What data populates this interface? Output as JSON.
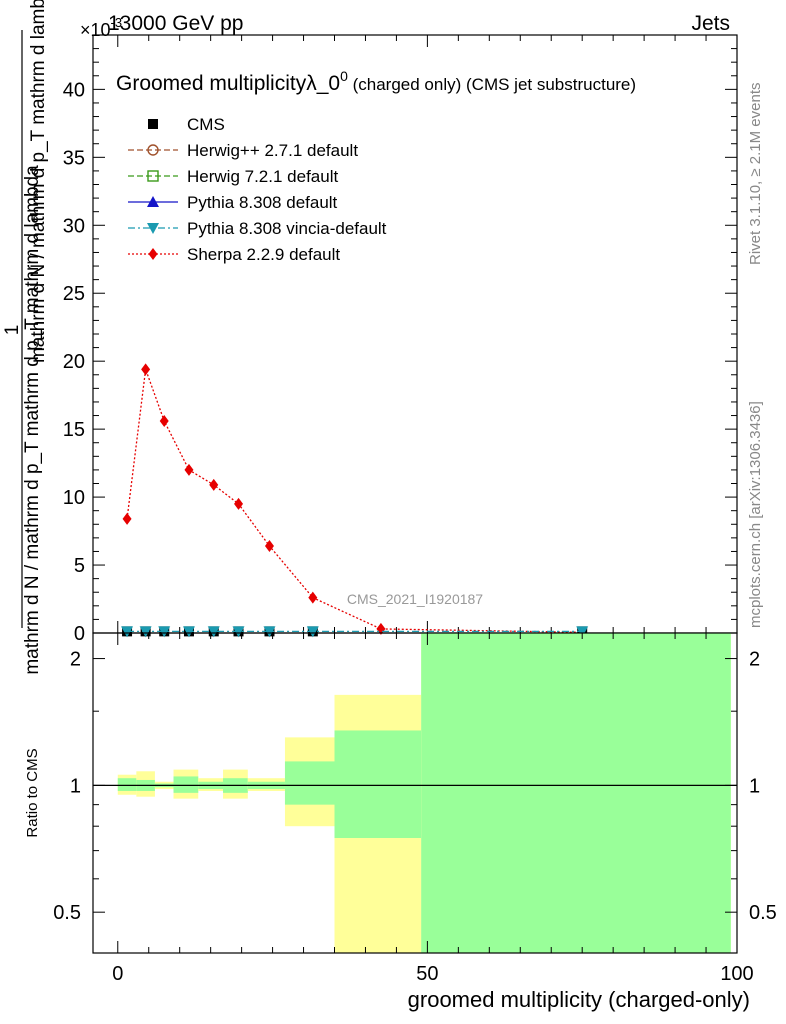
{
  "header": {
    "left": "13000 GeV pp",
    "right": "Jets",
    "exponent": "×10",
    "exponent_power": "-3"
  },
  "side_labels": {
    "rivet": "Rivet 3.1.10, ≥ 2.1M events",
    "mcplots": "mcplots.cern.ch [arXiv:1306.3436]"
  },
  "watermark": "CMS_2021_I1920187",
  "chart_data": [
    {
      "type": "line",
      "panel": "main",
      "title": "Groomed multiplicityλ_0",
      "title_sup": "0",
      "title_suffix": " (charged only) (CMS jet substructure)",
      "ylabel_fraction_top": "1",
      "ylabel_top": "mathrm d N / mathrm d p_T mathrm d lambda",
      "ylabel_num": "mathrm d²N",
      "ylabel_den": "mathrm d N / mathrm d p_T mathrm d p_T mathrm d lambda",
      "ylim": [
        0,
        44
      ],
      "y_ticks": [
        0,
        5,
        10,
        15,
        20,
        25,
        30,
        35,
        40
      ],
      "y_tick_labels": [
        "0",
        "5",
        "10",
        "15",
        "20",
        "25",
        "30",
        "35",
        "40"
      ],
      "xlim": [
        -4,
        100
      ],
      "legend_position": "top-left",
      "legend": [
        {
          "name": "CMS",
          "color": "#000000",
          "marker": "square",
          "line": "none"
        },
        {
          "name": "Herwig++ 2.7.1 default",
          "color": "#a0522d",
          "marker": "circle-open",
          "line": "dashed"
        },
        {
          "name": "Herwig 7.2.1 default",
          "color": "#3a9a1a",
          "marker": "square-open",
          "line": "dashed"
        },
        {
          "name": "Pythia 8.308 default",
          "color": "#1414c8",
          "marker": "triangle-up",
          "line": "solid"
        },
        {
          "name": "Pythia 8.308 vincia-default",
          "color": "#1a9ab0",
          "marker": "triangle-down",
          "line": "dashdot"
        },
        {
          "name": "Sherpa 2.2.9 default",
          "color": "#e60000",
          "marker": "diamond",
          "line": "dotted"
        }
      ],
      "series": [
        {
          "name": "Sherpa 2.2.9 default",
          "color": "#e60000",
          "x": [
            1.5,
            4.5,
            7.5,
            11.5,
            15.5,
            19.5,
            24.5,
            31.5,
            42.5,
            75
          ],
          "y": [
            8.4,
            19.4,
            15.6,
            12.0,
            10.9,
            9.5,
            6.4,
            2.6,
            0.3,
            0.05
          ]
        },
        {
          "name": "CMS",
          "color": "#000000",
          "x": [
            1.5,
            4.5,
            7.5,
            11.5,
            15.5,
            19.5,
            24.5,
            31.5,
            75
          ],
          "y": [
            0.12,
            0.12,
            0.12,
            0.12,
            0.12,
            0.12,
            0.12,
            0.12,
            0.12
          ]
        },
        {
          "name": "Pythia 8.308 vincia-default",
          "color": "#1a9ab0",
          "x": [
            1.5,
            4.5,
            7.5,
            11.5,
            15.5,
            19.5,
            24.5,
            31.5,
            75
          ],
          "y": [
            0.12,
            0.12,
            0.12,
            0.12,
            0.12,
            0.12,
            0.12,
            0.12,
            0.12
          ]
        }
      ]
    },
    {
      "type": "area",
      "panel": "ratio",
      "ylabel": "Ratio to CMS",
      "xlabel": "groomed multiplicity (charged-only)",
      "ylim": [
        0.4,
        2.3
      ],
      "log_scale_y": true,
      "y_ticks": [
        0.5,
        1,
        2
      ],
      "y_tick_labels": [
        "0.5",
        "1",
        "2"
      ],
      "xlim": [
        -4,
        100
      ],
      "x_ticks": [
        0,
        50,
        100
      ],
      "x_tick_labels": [
        "0",
        "50",
        "100"
      ],
      "reference_line": 1,
      "bands": [
        {
          "x0": 0,
          "x1": 3,
          "yellow": [
            0.95,
            1.06
          ],
          "green": [
            0.97,
            1.04
          ]
        },
        {
          "x0": 3,
          "x1": 6,
          "yellow": [
            0.94,
            1.08
          ],
          "green": [
            0.97,
            1.03
          ]
        },
        {
          "x0": 6,
          "x1": 9,
          "yellow": [
            0.98,
            1.02
          ],
          "green": [
            0.99,
            1.01
          ]
        },
        {
          "x0": 9,
          "x1": 13,
          "yellow": [
            0.93,
            1.09
          ],
          "green": [
            0.96,
            1.05
          ]
        },
        {
          "x0": 13,
          "x1": 17,
          "yellow": [
            0.97,
            1.04
          ],
          "green": [
            0.98,
            1.02
          ]
        },
        {
          "x0": 17,
          "x1": 21,
          "yellow": [
            0.93,
            1.09
          ],
          "green": [
            0.96,
            1.04
          ]
        },
        {
          "x0": 21,
          "x1": 27,
          "yellow": [
            0.97,
            1.04
          ],
          "green": [
            0.98,
            1.02
          ]
        },
        {
          "x0": 27,
          "x1": 35,
          "yellow": [
            0.8,
            1.3
          ],
          "green": [
            0.9,
            1.14
          ]
        },
        {
          "x0": 35,
          "x1": 49,
          "yellow": [
            0.38,
            1.64
          ],
          "green": [
            0.75,
            1.35
          ]
        },
        {
          "x0": 49,
          "x1": 99,
          "yellow": [
            0.38,
            2.3
          ],
          "green": [
            0.38,
            2.3
          ]
        }
      ]
    }
  ]
}
